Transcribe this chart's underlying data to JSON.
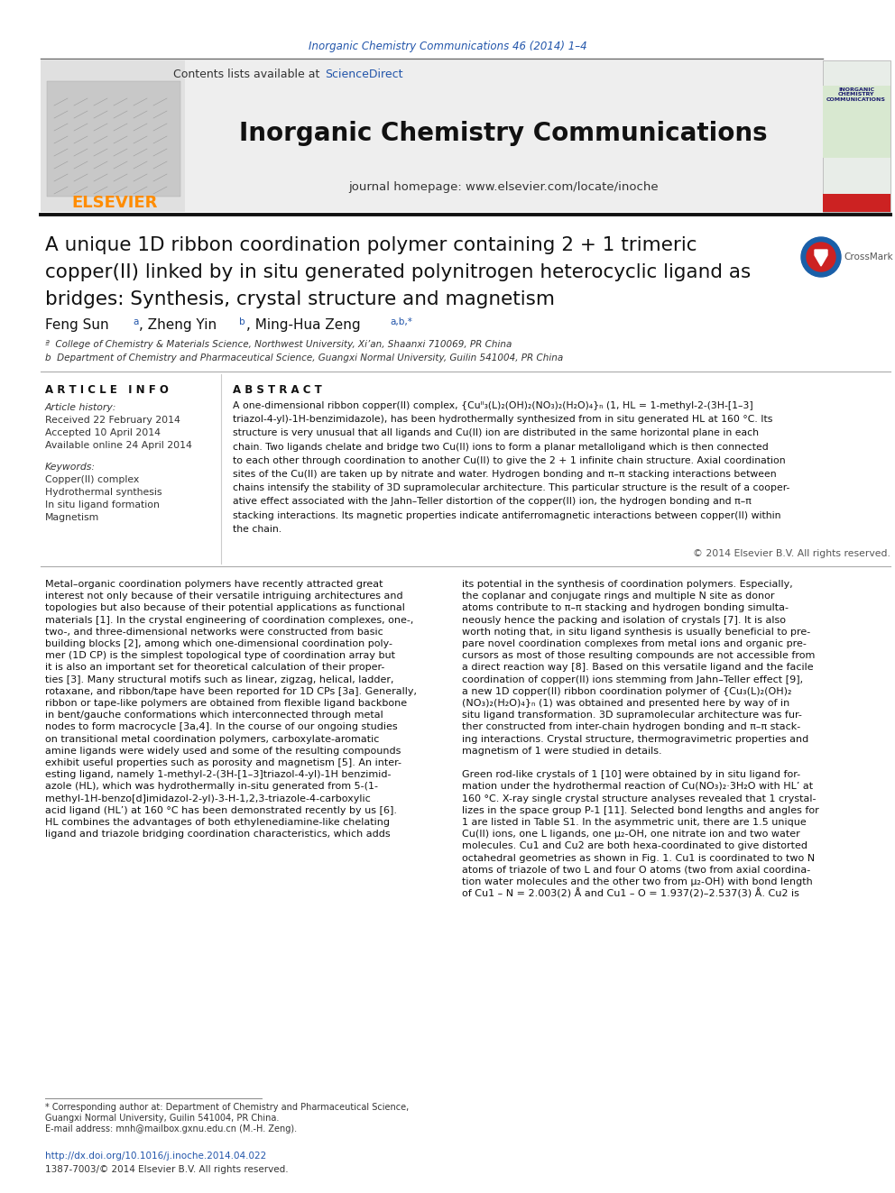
{
  "page_bg": "#ffffff",
  "top_journal_ref": "Inorganic Chemistry Communications 46 (2014) 1–4",
  "top_journal_ref_color": "#2255aa",
  "journal_name": "Inorganic Chemistry Communications",
  "journal_homepage": "journal homepage: www.elsevier.com/locate/inoche",
  "contents_line": "Contents lists available at ScienceDirect",
  "elsevier_color": "#ff8c00",
  "sciencedirect_color": "#2255aa",
  "header_bg": "#f0f0f0",
  "article_info_title": "A R T I C L E   I N F O",
  "article_history": "Article history:",
  "received": "Received 22 February 2014",
  "accepted": "Accepted 10 April 2014",
  "available": "Available online 24 April 2014",
  "keywords_title": "Keywords:",
  "keywords": [
    "Copper(II) complex",
    "Hydrothermal synthesis",
    "In situ ligand formation",
    "Magnetism"
  ],
  "abstract_title": "A B S T R A C T",
  "copyright": "© 2014 Elsevier B.V. All rights reserved.",
  "footer_url": "http://dx.doi.org/10.1016/j.inoche.2014.04.022",
  "footer_issn": "1387-7003/© 2014 Elsevier B.V. All rights reserved.",
  "affil_a": "ª  College of Chemistry & Materials Science, Northwest University, Xi’an, Shaanxi 710069, PR China",
  "affil_b": "b  Department of Chemistry and Pharmaceutical Science, Guangxi Normal University, Guilin 541004, PR China",
  "abstract_lines": [
    "A one-dimensional ribbon copper(II) complex, {Cuᴵᴵ₃(L)₂(OH)₂(NO₃)₂(H₂O)₄}ₙ (1, HL = 1-methyl-2-(3H-[1–3]",
    "triazol-4-yl)-1H-benzimidazole), has been hydrothermally synthesized from in situ generated HL at 160 °C. Its",
    "structure is very unusual that all ligands and Cu(II) ion are distributed in the same horizontal plane in each",
    "chain. Two ligands chelate and bridge two Cu(II) ions to form a planar metalloligand which is then connected",
    "to each other through coordination to another Cu(II) to give the 2 + 1 infinite chain structure. Axial coordination",
    "sites of the Cu(II) are taken up by nitrate and water. Hydrogen bonding and π–π stacking interactions between",
    "chains intensify the stability of 3D supramolecular architecture. This particular structure is the result of a cooper-",
    "ative effect associated with the Jahn–Teller distortion of the copper(II) ion, the hydrogen bonding and π–π",
    "stacking interactions. Its magnetic properties indicate antiferromagnetic interactions between copper(II) within",
    "the chain."
  ],
  "col1_lines": [
    "Metal–organic coordination polymers have recently attracted great",
    "interest not only because of their versatile intriguing architectures and",
    "topologies but also because of their potential applications as functional",
    "materials [1]. In the crystal engineering of coordination complexes, one-,",
    "two-, and three-dimensional networks were constructed from basic",
    "building blocks [2], among which one-dimensional coordination poly-",
    "mer (1D CP) is the simplest topological type of coordination array but",
    "it is also an important set for theoretical calculation of their proper-",
    "ties [3]. Many structural motifs such as linear, zigzag, helical, ladder,",
    "rotaxane, and ribbon/tape have been reported for 1D CPs [3a]. Generally,",
    "ribbon or tape-like polymers are obtained from flexible ligand backbone",
    "in bent/gauche conformations which interconnected through metal",
    "nodes to form macrocycle [3a,4]. In the course of our ongoing studies",
    "on transitional metal coordination polymers, carboxylate-aromatic",
    "amine ligands were widely used and some of the resulting compounds",
    "exhibit useful properties such as porosity and magnetism [5]. An inter-",
    "esting ligand, namely 1-methyl-2-(3H-[1–3]triazol-4-yl)-1H benzimid-",
    "azole (HL), which was hydrothermally in-situ generated from 5-(1-",
    "methyl-1H-benzo[d]imidazol-2-yl)-3-H-1,2,3-triazole-4-carboxylic",
    "acid ligand (HL’) at 160 °C has been demonstrated recently by us [6].",
    "HL combines the advantages of both ethylenediamine-like chelating",
    "ligand and triazole bridging coordination characteristics, which adds"
  ],
  "col2_lines": [
    "its potential in the synthesis of coordination polymers. Especially,",
    "the coplanar and conjugate rings and multiple N site as donor",
    "atoms contribute to π–π stacking and hydrogen bonding simulta-",
    "neously hence the packing and isolation of crystals [7]. It is also",
    "worth noting that, in situ ligand synthesis is usually beneficial to pre-",
    "pare novel coordination complexes from metal ions and organic pre-",
    "cursors as most of those resulting compounds are not accessible from",
    "a direct reaction way [8]. Based on this versatile ligand and the facile",
    "coordination of copper(II) ions stemming from Jahn–Teller effect [9],",
    "a new 1D copper(II) ribbon coordination polymer of {Cu₃(L)₂(OH)₂",
    "(NO₃)₂(H₂O)₄}ₙ (1) was obtained and presented here by way of in",
    "situ ligand transformation. 3D supramolecular architecture was fur-",
    "ther constructed from inter-chain hydrogen bonding and π–π stack-",
    "ing interactions. Crystal structure, thermogravimetric properties and",
    "magnetism of 1 were studied in details.",
    "",
    "Green rod-like crystals of 1 [10] were obtained by in situ ligand for-",
    "mation under the hydrothermal reaction of Cu(NO₃)₂·3H₂O with HL’ at",
    "160 °C. X-ray single crystal structure analyses revealed that 1 crystal-",
    "lizes in the space group P-1 [11]. Selected bond lengths and angles for",
    "1 are listed in Table S1. In the asymmetric unit, there are 1.5 unique",
    "Cu(II) ions, one L ligands, one μ₂-OH, one nitrate ion and two water",
    "molecules. Cu1 and Cu2 are both hexa-coordinated to give distorted",
    "octahedral geometries as shown in Fig. 1. Cu1 is coordinated to two N",
    "atoms of triazole of two L and four O atoms (two from axial coordina-",
    "tion water molecules and the other two from μ₂-OH) with bond length",
    "of Cu1 – N = 2.003(2) Å and Cu1 – O = 1.937(2)–2.537(3) Å. Cu2 is"
  ],
  "footnote_lines": [
    "* Corresponding author at: Department of Chemistry and Pharmaceutical Science,",
    "Guangxi Normal University, Guilin 541004, PR China.",
    "E-mail address: mnh@mailbox.gxnu.edu.cn (M.-H. Zeng)."
  ]
}
